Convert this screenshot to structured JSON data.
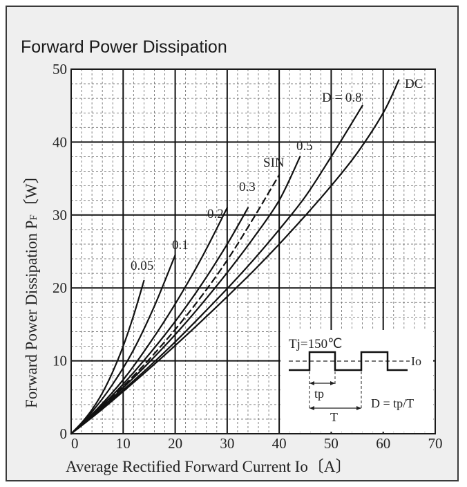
{
  "chart_data": {
    "type": "line",
    "title": "Forward Power Dissipation",
    "xlabel": "Average Rectified Forward Current  Io",
    "xunit": "〔A〕",
    "ylabel": "Forward Power Dissipation  P",
    "ylabel_sub": "F",
    "yunit": "〔W〕",
    "xlim": [
      0,
      70
    ],
    "ylim": [
      0,
      50
    ],
    "xticks": [
      "0",
      "10",
      "20",
      "30",
      "40",
      "50",
      "60",
      "70"
    ],
    "yticks": [
      "0",
      "10",
      "20",
      "30",
      "40",
      "50"
    ],
    "grid": true,
    "series": [
      {
        "name": "0.05",
        "dashed": false,
        "x": [
          0,
          2,
          4,
          6,
          8,
          10,
          12,
          14
        ],
        "y": [
          0,
          1.5,
          3.3,
          5.6,
          8.5,
          12.0,
          16.2,
          21.0
        ]
      },
      {
        "name": "0.1",
        "dashed": false,
        "x": [
          0,
          4,
          8,
          12,
          16,
          20
        ],
        "y": [
          0,
          3.0,
          6.8,
          11.5,
          17.5,
          24.5
        ]
      },
      {
        "name": "0.2",
        "dashed": false,
        "x": [
          0,
          5,
          10,
          15,
          20,
          25,
          30
        ],
        "y": [
          0,
          3.4,
          7.4,
          12.3,
          17.8,
          24.0,
          31.0
        ]
      },
      {
        "name": "0.3",
        "dashed": false,
        "x": [
          0,
          5,
          10,
          15,
          20,
          25,
          30,
          34
        ],
        "y": [
          0,
          3.2,
          6.8,
          10.9,
          15.4,
          20.4,
          26.0,
          31.0
        ]
      },
      {
        "name": "SIN",
        "dashed": true,
        "x": [
          0,
          5,
          10,
          15,
          20,
          25,
          30,
          35,
          40
        ],
        "y": [
          0,
          3.1,
          6.5,
          10.2,
          14.3,
          18.8,
          23.8,
          29.5,
          35.5
        ]
      },
      {
        "name": "0.5",
        "dashed": false,
        "x": [
          0,
          5,
          10,
          15,
          20,
          25,
          30,
          35,
          40,
          44
        ],
        "y": [
          0,
          3.0,
          6.3,
          9.8,
          13.6,
          17.7,
          22.1,
          26.8,
          32.0,
          38.0
        ]
      },
      {
        "name": "D = 0.8",
        "dashed": false,
        "x": [
          0,
          5,
          10,
          15,
          20,
          25,
          30,
          35,
          40,
          45,
          50,
          56
        ],
        "y": [
          0,
          2.9,
          6.0,
          9.2,
          12.6,
          16.2,
          19.9,
          23.8,
          28.0,
          32.5,
          38.0,
          45.0
        ]
      },
      {
        "name": "DC",
        "dashed": false,
        "x": [
          0,
          5,
          10,
          15,
          20,
          25,
          30,
          35,
          40,
          45,
          50,
          55,
          60,
          63
        ],
        "y": [
          0,
          2.8,
          5.8,
          8.9,
          12.1,
          15.4,
          18.8,
          22.3,
          26.0,
          29.9,
          34.0,
          38.5,
          44.0,
          48.5
        ]
      }
    ],
    "inset": {
      "temp": "Tj=150℃",
      "io": "Io",
      "tp": "tp",
      "period": "T",
      "duty": "D = tp/T"
    }
  }
}
